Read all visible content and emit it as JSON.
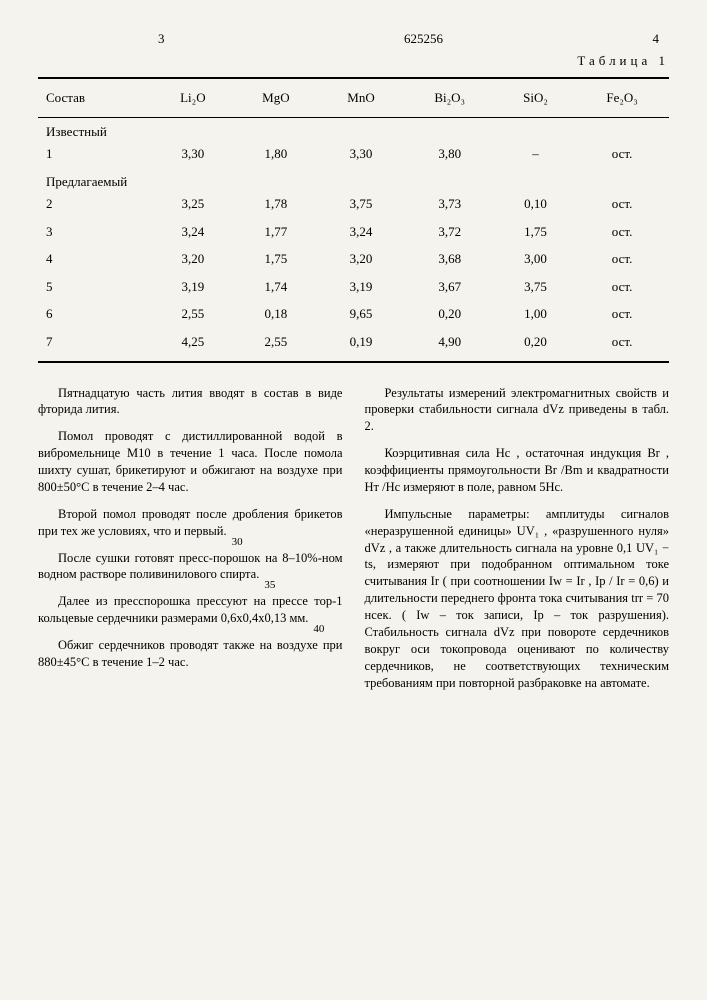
{
  "header": {
    "left_page": "3",
    "doc_number": "625256",
    "right_page": "4"
  },
  "table1": {
    "caption": "Таблица 1",
    "columns": [
      "Состав",
      "Li₂O",
      "MgO",
      "MnO",
      "Bi₂O₃",
      "SiO₂",
      "Fe₂O₃"
    ],
    "group1_label": "Известный",
    "group2_label": "Предлагаемый",
    "rows": [
      [
        "1",
        "3,30",
        "1,80",
        "3,30",
        "3,80",
        "–",
        "ост."
      ],
      [
        "2",
        "3,25",
        "1,78",
        "3,75",
        "3,73",
        "0,10",
        "ост."
      ],
      [
        "3",
        "3,24",
        "1,77",
        "3,24",
        "3,72",
        "1,75",
        "ост."
      ],
      [
        "4",
        "3,20",
        "1,75",
        "3,20",
        "3,68",
        "3,00",
        "ост."
      ],
      [
        "5",
        "3,19",
        "1,74",
        "3,19",
        "3,67",
        "3,75",
        "ост."
      ],
      [
        "6",
        "2,55",
        "0,18",
        "9,65",
        "0,20",
        "1,00",
        "ост."
      ],
      [
        "7",
        "4,25",
        "2,55",
        "0,19",
        "4,90",
        "0,20",
        "ост."
      ]
    ]
  },
  "margin_numbers": {
    "a": "30",
    "b": "35",
    "c": "40"
  },
  "col1": {
    "p1": "Пятнадцатую часть лития вводят в состав в виде фторида лития.",
    "p2": "Помол проводят с дистиллированной водой в вибромельнице М10 в течение 1 часа. После помола шихту сушат, брикетируют и обжигают на воздухе при 800±50°C в течение 2–4 час.",
    "p3": "Второй помол проводят после дробления брикетов при тех же условиях, что и первый.",
    "p4": "После сушки готовят пресс-порошок на 8–10%-ном водном растворе поливинилового спирта.",
    "p5": "Далее из пресспорошка прессуют на прессе тор-1 кольцевые сердечники размерами 0,6х0,4х0,13 мм.",
    "p6": "Обжиг сердечников проводят также на воздухе при 880±45°C в течение 1–2 час."
  },
  "col2": {
    "p1": "Результаты измерений электромагнитных свойств и проверки стабильности сигнала dVz приведены в табл. 2.",
    "p2": "Коэрцитивная сила Hc , остаточная индукция Br , коэффициенты прямоугольности Br /Bm и квадратности Hт /Hc измеряют в поле, равном 5Hc.",
    "p3": "Импульсные параметры: амплитуды сигналов «неразрушенной единицы» UV₁ , «разрушенного нуля» dVz , а также длительность сигнала на уровне 0,1 UV₁ − ts, измеряют при подобранном оптимальном токе считывания Ir ( при соотношении Iw = Ir , Ip / Ir = 0,6) и длительности переднего фронта тока считывания trr = 70 нсек. ( Iw – ток записи, Ip – ток разрушения). Стабильность сигнала dVz при повороте сердечников вокруг оси токопровода оценивают по количеству сердечников, не соответствующих техническим требованиям при повторной разбраковке на автомате."
  }
}
